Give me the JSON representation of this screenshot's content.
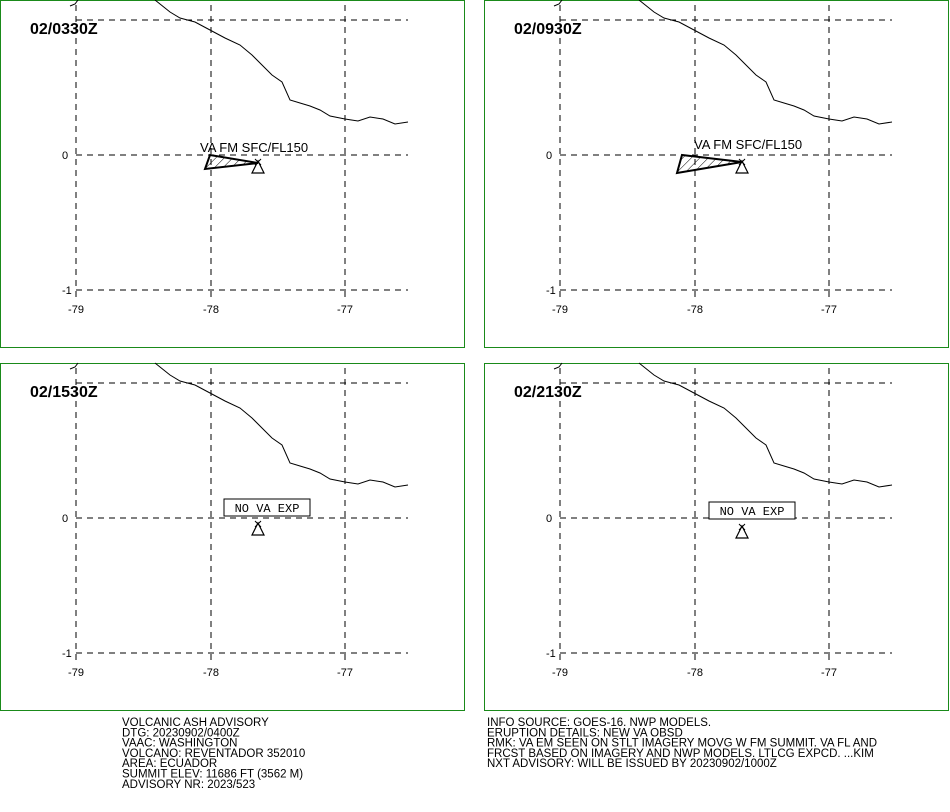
{
  "panels": [
    {
      "time": "02/0330Z",
      "label": "VA FM SFC/FL150",
      "kind": "ash"
    },
    {
      "time": "02/0930Z",
      "label": "VA FM SFC/FL150",
      "kind": "ash"
    },
    {
      "time": "02/1530Z",
      "label": "NO VA EXP",
      "kind": "none"
    },
    {
      "time": "02/2130Z",
      "label": "NO VA EXP",
      "kind": "none"
    }
  ],
  "lat_labels": [
    0,
    -1
  ],
  "lon_labels": [
    -79,
    -78,
    -77
  ],
  "footer_left": [
    "VOLCANIC ASH ADVISORY",
    "DTG: 20230902/0400Z",
    "VAAC: WASHINGTON",
    "VOLCANO: REVENTADOR 352010",
    "AREA: ECUADOR",
    "SUMMIT ELEV: 11686 FT (3562 M)",
    "ADVISORY NR: 2023/523"
  ],
  "footer_right": [
    "INFO SOURCE: GOES-16. NWP MODELS.",
    "ERUPTION DETAILS: NEW VA OBSD",
    "RMK: VA EM SEEN ON STLT IMAGERY MOVG W FM SUMMIT. VA FL AND",
    "FRCST BASED ON IMAGERY AND NWP MODELS. LTLCG EXPCD. ...KIM",
    "NXT ADVISORY: WILL BE ISSUED BY 20230902/1000Z"
  ]
}
